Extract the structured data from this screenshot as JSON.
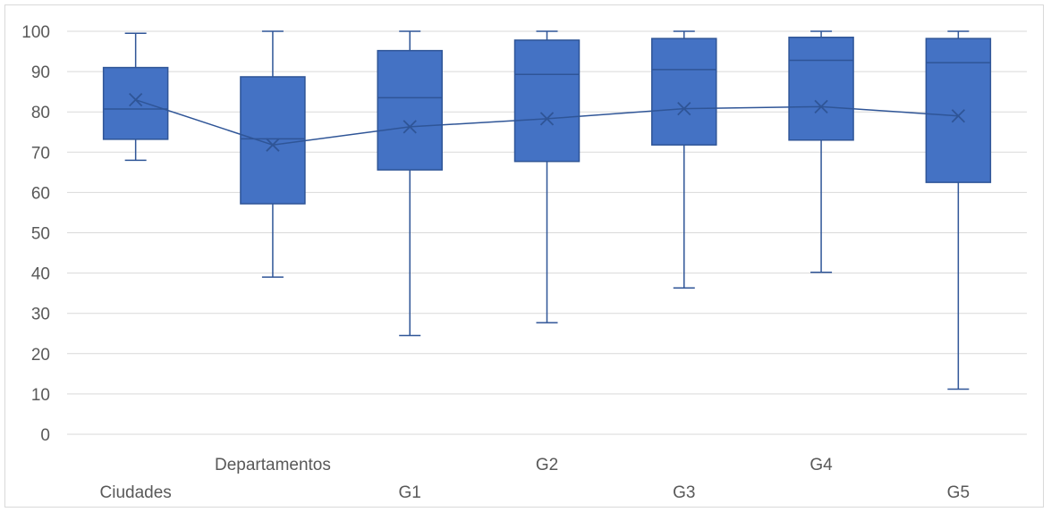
{
  "chart_data": {
    "type": "box",
    "title": "",
    "xlabel": "",
    "ylabel": "",
    "ylim": [
      0,
      100
    ],
    "yticks": [
      0,
      10,
      20,
      30,
      40,
      50,
      60,
      70,
      80,
      90,
      100
    ],
    "grid": true,
    "legend": "none",
    "colors": {
      "box_fill": "#4472c4",
      "box_stroke": "#2f5597",
      "grid": "#d9d9d9",
      "text": "#595959"
    },
    "categories": [
      "Ciudades",
      "Departamentos",
      "G1",
      "G2",
      "G3",
      "G4",
      "G5"
    ],
    "boxes": [
      {
        "category": "Ciudades",
        "min": 68,
        "q1": 73.2,
        "median": 80.7,
        "q3": 91,
        "max": 99.5,
        "mean": 83
      },
      {
        "category": "Departamentos",
        "min": 39,
        "q1": 57.2,
        "median": 73.3,
        "q3": 88.7,
        "max": 100,
        "mean": 71.8
      },
      {
        "category": "G1",
        "min": 24.5,
        "q1": 65.6,
        "median": 83.5,
        "q3": 95.2,
        "max": 100,
        "mean": 76.3
      },
      {
        "category": "G2",
        "min": 27.7,
        "q1": 67.7,
        "median": 89.3,
        "q3": 97.8,
        "max": 100,
        "mean": 78.3
      },
      {
        "category": "G3",
        "min": 36.3,
        "q1": 71.8,
        "median": 90.5,
        "q3": 98.2,
        "max": 100,
        "mean": 80.8
      },
      {
        "category": "G4",
        "min": 40.2,
        "q1": 73,
        "median": 92.8,
        "q3": 98.5,
        "max": 100,
        "mean": 81.3
      },
      {
        "category": "G5",
        "min": 11.2,
        "q1": 62.5,
        "median": 92.2,
        "q3": 98.2,
        "max": 100,
        "mean": 79
      }
    ]
  }
}
